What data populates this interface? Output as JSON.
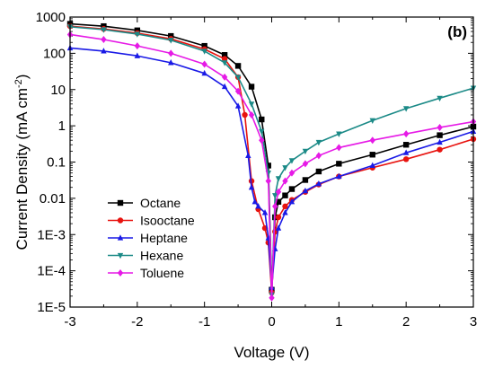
{
  "chart_data": {
    "type": "line",
    "panel_label": "(b)",
    "xlabel": "Voltage (V)",
    "ylabel": "Current Density (mA cm",
    "ylabel_sup": "-2",
    "ylabel_close": ")",
    "xlim": [
      -3,
      3
    ],
    "ylim": [
      1e-05,
      1000
    ],
    "yscale": "log",
    "x_ticks": [
      -3,
      -2,
      -1,
      0,
      1,
      2,
      3
    ],
    "x_tick_labels": [
      "-3",
      "-2",
      "-1",
      "0",
      "1",
      "2",
      "3"
    ],
    "y_ticks": [
      1e-05,
      0.0001,
      0.001,
      0.01,
      0.1,
      1,
      10,
      100,
      1000
    ],
    "y_tick_labels": [
      "1E-5",
      "1E-4",
      "1E-3",
      "0.01",
      "0.1",
      "1",
      "10",
      "100",
      "1000"
    ],
    "legend_position": "left-center",
    "series": [
      {
        "name": "Octane",
        "color": "#000000",
        "marker": "square",
        "x": [
          -3,
          -2.5,
          -2,
          -1.5,
          -1,
          -0.7,
          -0.5,
          -0.3,
          -0.15,
          -0.05,
          0,
          0.05,
          0.1,
          0.2,
          0.3,
          0.5,
          0.7,
          1,
          1.5,
          2,
          2.5,
          3
        ],
        "y": [
          650,
          560,
          430,
          300,
          160,
          90,
          45,
          12,
          1.5,
          0.08,
          3e-05,
          0.003,
          0.008,
          0.012,
          0.018,
          0.032,
          0.055,
          0.09,
          0.16,
          0.3,
          0.55,
          0.95
        ]
      },
      {
        "name": "Isooctane",
        "color": "#e8130f",
        "marker": "circle",
        "x": [
          -3,
          -2.5,
          -2,
          -1.5,
          -1,
          -0.7,
          -0.5,
          -0.4,
          -0.3,
          -0.2,
          -0.1,
          -0.05,
          0,
          0.05,
          0.1,
          0.2,
          0.3,
          0.5,
          0.7,
          1,
          1.5,
          2,
          2.5,
          3
        ],
        "y": [
          560,
          470,
          360,
          250,
          130,
          70,
          22,
          2,
          0.03,
          0.005,
          0.0015,
          0.0006,
          2.5e-05,
          0.0012,
          0.003,
          0.006,
          0.009,
          0.015,
          0.024,
          0.04,
          0.07,
          0.12,
          0.22,
          0.43
        ]
      },
      {
        "name": "Heptane",
        "color": "#1a1ae6",
        "marker": "triangle-up",
        "x": [
          -3,
          -2.5,
          -2,
          -1.5,
          -1,
          -0.7,
          -0.5,
          -0.35,
          -0.3,
          -0.25,
          -0.2,
          -0.1,
          -0.05,
          0,
          0.05,
          0.1,
          0.2,
          0.3,
          0.5,
          0.7,
          1,
          1.5,
          2,
          2.5,
          3
        ],
        "y": [
          140,
          115,
          85,
          55,
          28,
          12,
          3.5,
          0.15,
          0.02,
          0.008,
          0.006,
          0.004,
          0.0008,
          3.5e-05,
          0.0004,
          0.0015,
          0.004,
          0.008,
          0.016,
          0.025,
          0.04,
          0.08,
          0.18,
          0.35,
          0.7
        ]
      },
      {
        "name": "Hexane",
        "color": "#1b8a87",
        "marker": "triangle-down",
        "x": [
          -3,
          -2.5,
          -2,
          -1.5,
          -1,
          -0.7,
          -0.5,
          -0.3,
          -0.15,
          -0.05,
          0,
          0.05,
          0.1,
          0.2,
          0.3,
          0.5,
          0.7,
          1,
          1.5,
          2,
          2.5,
          3
        ],
        "y": [
          540,
          450,
          340,
          230,
          115,
          55,
          22,
          4,
          0.7,
          0.05,
          2.2e-05,
          0.012,
          0.035,
          0.07,
          0.11,
          0.2,
          0.35,
          0.6,
          1.4,
          3,
          5.8,
          11
        ]
      },
      {
        "name": "Toluene",
        "color": "#e61ae6",
        "marker": "diamond",
        "x": [
          -3,
          -2.5,
          -2,
          -1.5,
          -1,
          -0.7,
          -0.5,
          -0.3,
          -0.15,
          -0.05,
          0,
          0.05,
          0.1,
          0.2,
          0.3,
          0.5,
          0.7,
          1,
          1.5,
          2,
          2.5,
          3
        ],
        "y": [
          330,
          240,
          160,
          100,
          50,
          22,
          9,
          2,
          0.4,
          0.03,
          1.8e-05,
          0.006,
          0.015,
          0.03,
          0.05,
          0.09,
          0.15,
          0.25,
          0.4,
          0.6,
          0.9,
          1.3
        ]
      }
    ]
  }
}
